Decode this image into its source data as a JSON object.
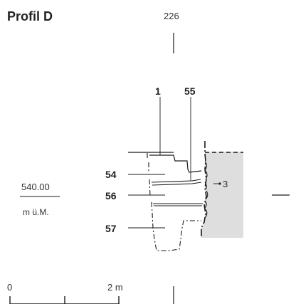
{
  "profile": {
    "title": "Profil D",
    "reference_top": "226",
    "labels": {
      "layer_1": "1",
      "layer_55": "55",
      "layer_54": "54",
      "layer_56": "56",
      "layer_57": "57",
      "wall_3": "3"
    },
    "elevation": {
      "value": "540.00",
      "unit": "m ü.M."
    },
    "scale": {
      "start": "0",
      "end": "2 m"
    },
    "colors": {
      "ink": "#1a1a1a",
      "wall_fill": "#dedede"
    }
  }
}
